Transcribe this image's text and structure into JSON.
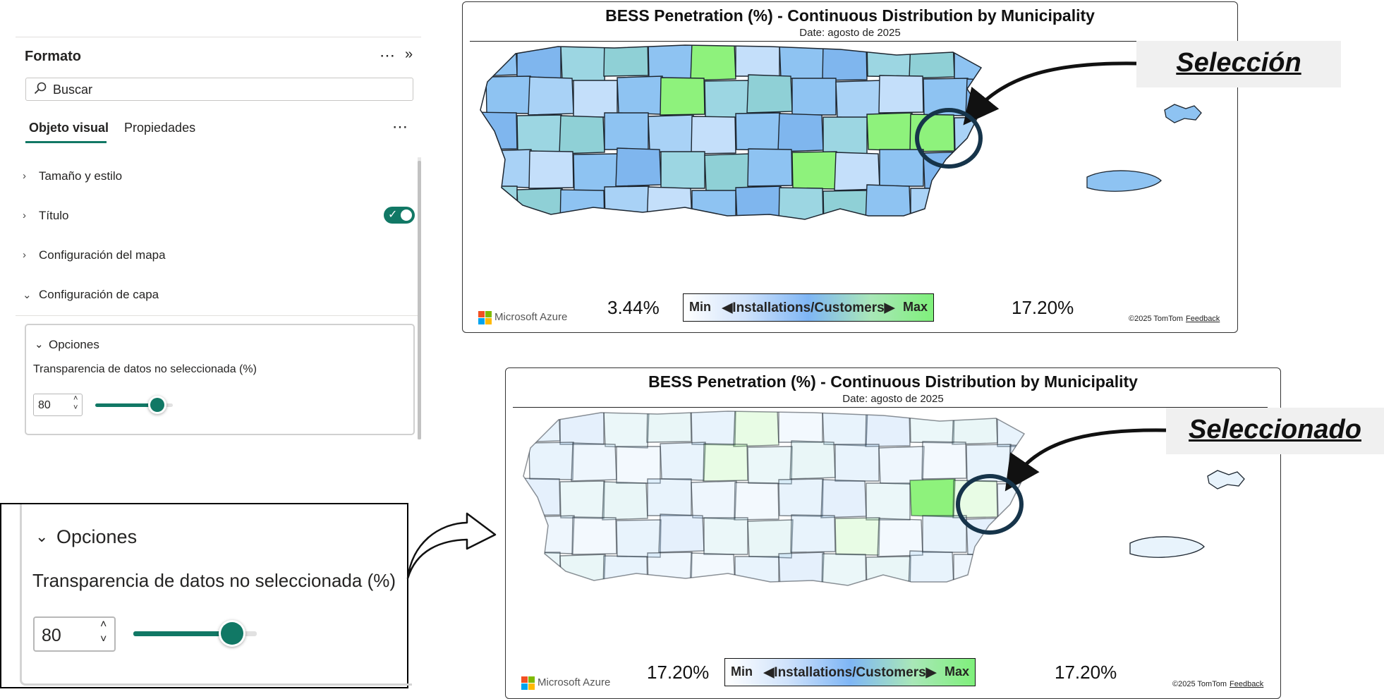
{
  "format_pane": {
    "title": "Formato",
    "more_icon": "⋯",
    "collapse_icon": "»",
    "search_placeholder": "Buscar",
    "tabs": [
      {
        "label": "Objeto visual",
        "active": true
      },
      {
        "label": "Propiedades",
        "active": false
      }
    ],
    "tabs_more_icon": "⋯",
    "sections": [
      {
        "label": "Tamaño y estilo",
        "expanded": false
      },
      {
        "label": "Título",
        "expanded": false,
        "toggle_on": true
      },
      {
        "label": "Configuración del mapa",
        "expanded": false
      },
      {
        "label": "Configuración de capa",
        "expanded": true
      }
    ],
    "options": {
      "header": "Opciones",
      "transparency_label": "Transparencia de datos no seleccionada (%)",
      "transparency_value": "80",
      "slider_fraction": 0.8
    }
  },
  "zoom_options": {
    "header": "Opciones",
    "transparency_label": "Transparencia de datos no seleccionada (%)",
    "transparency_value": "80",
    "slider_fraction": 0.8
  },
  "maps": [
    {
      "title": "BESS Penetration (%) - Continuous Distribution by Municipality",
      "date": "Date: agosto de 2025",
      "min_value": "3.44%",
      "max_value": "17.20%",
      "legend_min": "Min",
      "legend_label": "◀Installations/Customers▶",
      "legend_max": "Max",
      "brand": "Microsoft Azure",
      "copyright": "©2025 TomTom",
      "feedback": "Feedback",
      "faded": false
    },
    {
      "title": "BESS Penetration (%) - Continuous Distribution by Municipality",
      "date": "Date: agosto de 2025",
      "min_value": "17.20%",
      "max_value": "17.20%",
      "legend_min": "Min",
      "legend_label": "◀Installations/Customers▶",
      "legend_max": "Max",
      "brand": "Microsoft Azure",
      "copyright": "©2025 TomTom",
      "feedback": "Feedback",
      "faded": true
    }
  ],
  "callouts": {
    "seleccion": "Selección",
    "seleccionado": "Seleccionado"
  },
  "colors": {
    "accent": "#117865",
    "muni_blue": "#8ec3f2",
    "muni_teal": "#8fd0d6",
    "muni_green": "#8ef27c",
    "selection_ring": "#16344a"
  }
}
